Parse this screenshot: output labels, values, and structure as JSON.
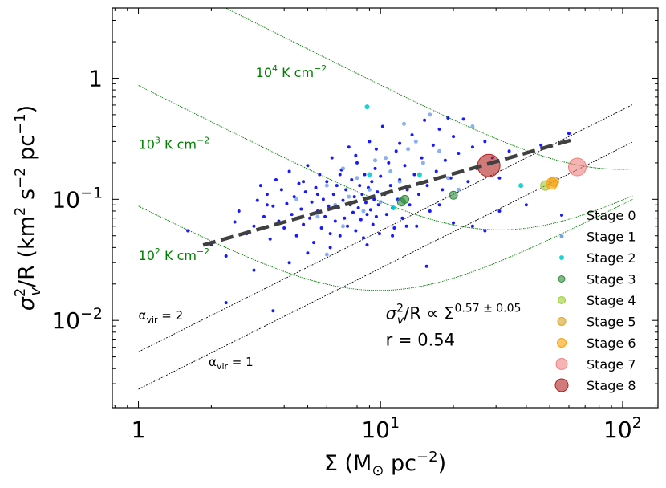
{
  "chart_data": {
    "type": "scatter",
    "xscale": "log",
    "yscale": "log",
    "xlim": [
      0.78,
      140
    ],
    "ylim": [
      0.0019,
      3.8
    ],
    "xlabel": {
      "main": "Σ (M",
      "sub": "⊙",
      "mid": " pc",
      "sup": "−2",
      "end": ")"
    },
    "ylabel": {
      "sig": "σ",
      "sub": "v",
      "sup": "2",
      "mid": "/R (km",
      "sup2": "2",
      "mid2": " s",
      "sup3": "−2",
      "mid3": " pc",
      "sup4": "−1",
      "end": ")"
    },
    "xticks": [
      {
        "value": 1,
        "base": "1",
        "exp": ""
      },
      {
        "value": 10,
        "base": "10",
        "exp": "1"
      },
      {
        "value": 100,
        "base": "10",
        "exp": "2"
      }
    ],
    "yticks": [
      {
        "value": 0.01,
        "base": "10",
        "exp": "−2"
      },
      {
        "value": 0.1,
        "base": "10",
        "exp": "−1"
      },
      {
        "value": 1,
        "base": "1",
        "exp": ""
      }
    ],
    "legend": {
      "position": "lower-right",
      "entries": [
        {
          "label": "Stage 0",
          "color": "#0000ff",
          "r": 2
        },
        {
          "label": "Stage 1",
          "color": "#6495ed",
          "r": 2.5
        },
        {
          "label": "Stage 2",
          "color": "#00ced1",
          "r": 3
        },
        {
          "label": "Stage 3",
          "color": "#2e8b3c",
          "r": 4
        },
        {
          "label": "Stage 4",
          "color": "#9acd32",
          "r": 4.5
        },
        {
          "label": "Stage 5",
          "color": "#daa520",
          "r": 5
        },
        {
          "label": "Stage 6",
          "color": "#ff9f00",
          "r": 5.5
        },
        {
          "label": "Stage 7",
          "color": "#f08080",
          "r": 7
        },
        {
          "label": "Stage 8",
          "color": "#b22222",
          "r": 8
        }
      ]
    },
    "virial_lines": [
      {
        "label": "α",
        "sub": "vir",
        "eq": " = 2",
        "y_at_1": 0.0055,
        "label_x": 1.0,
        "label_y": 0.0102
      },
      {
        "label": "α",
        "sub": "vir",
        "eq": " = 1",
        "y_at_1": 0.0027,
        "label_x": 1.95,
        "label_y": 0.0042
      }
    ],
    "pressure_curves": [
      {
        "label_base": "10",
        "label_exp": "2",
        "label_unit": " K cm",
        "label_unit_exp": "−2",
        "P": 100,
        "label_x": 1.0,
        "label_y": 0.0315
      },
      {
        "label_base": "10",
        "label_exp": "3",
        "label_unit": " K cm",
        "label_unit_exp": "−2",
        "P": 1000,
        "label_x": 1.0,
        "label_y": 0.26
      },
      {
        "label_base": "10",
        "label_exp": "4",
        "label_unit": " K cm",
        "label_unit_exp": "−2",
        "P": 10000,
        "label_x": 3.05,
        "label_y": 1.02
      }
    ],
    "fit": {
      "slope": 0.57,
      "amplitude": 0.0295,
      "x_range": [
        1.85,
        62
      ]
    },
    "annotation": {
      "rel_sig": "σ",
      "rel_sub": "v",
      "rel_sup": "2",
      "rel_mid": "/R ∝ Σ",
      "rel_exp": "0.57 ± 0.05",
      "r_text": "r = 0.54",
      "x": 10.5,
      "y_rel": 0.0103,
      "y_r": 0.0062
    },
    "series": [
      {
        "stage": 0,
        "points": [
          [
            1.6,
            0.055
          ],
          [
            2.0,
            0.042
          ],
          [
            2.3,
            0.034
          ],
          [
            2.5,
            0.065
          ],
          [
            2.6,
            0.08
          ],
          [
            2.8,
            0.052
          ],
          [
            3.0,
            0.06
          ],
          [
            3.1,
            0.098
          ],
          [
            3.2,
            0.13
          ],
          [
            3.3,
            0.072
          ],
          [
            3.4,
            0.11
          ],
          [
            3.5,
            0.047
          ],
          [
            3.6,
            0.088
          ],
          [
            3.7,
            0.145
          ],
          [
            3.8,
            0.066
          ],
          [
            3.9,
            0.12
          ],
          [
            4.0,
            0.058
          ],
          [
            4.1,
            0.092
          ],
          [
            4.2,
            0.17
          ],
          [
            4.3,
            0.075
          ],
          [
            4.4,
            0.105
          ],
          [
            4.5,
            0.05
          ],
          [
            4.6,
            0.135
          ],
          [
            4.7,
            0.083
          ],
          [
            4.8,
            0.062
          ],
          [
            4.9,
            0.115
          ],
          [
            5.0,
            0.19
          ],
          [
            5.1,
            0.07
          ],
          [
            5.2,
            0.095
          ],
          [
            5.3,
            0.044
          ],
          [
            5.4,
            0.125
          ],
          [
            5.5,
            0.08
          ],
          [
            5.6,
            0.16
          ],
          [
            5.7,
            0.058
          ],
          [
            5.8,
            0.1
          ],
          [
            5.9,
            0.072
          ],
          [
            6.0,
            0.14
          ],
          [
            6.1,
            0.088
          ],
          [
            6.2,
            0.052
          ],
          [
            6.3,
            0.22
          ],
          [
            6.4,
            0.11
          ],
          [
            6.5,
            0.066
          ],
          [
            6.6,
            0.13
          ],
          [
            6.7,
            0.085
          ],
          [
            6.8,
            0.05
          ],
          [
            6.9,
            0.175
          ],
          [
            7.0,
            0.098
          ],
          [
            7.1,
            0.07
          ],
          [
            7.2,
            0.12
          ],
          [
            7.3,
            0.06
          ],
          [
            7.4,
            0.27
          ],
          [
            7.5,
            0.09
          ],
          [
            7.6,
            0.145
          ],
          [
            7.7,
            0.078
          ],
          [
            7.8,
            0.105
          ],
          [
            7.9,
            0.055
          ],
          [
            8.0,
            0.2
          ],
          [
            8.1,
            0.085
          ],
          [
            8.2,
            0.13
          ],
          [
            8.3,
            0.068
          ],
          [
            8.4,
            0.11
          ],
          [
            8.5,
            0.048
          ],
          [
            8.6,
            0.16
          ],
          [
            8.7,
            0.094
          ],
          [
            8.8,
            0.075
          ],
          [
            8.9,
            0.125
          ],
          [
            9.0,
            0.3
          ],
          [
            9.1,
            0.082
          ],
          [
            9.2,
            0.14
          ],
          [
            9.3,
            0.062
          ],
          [
            9.4,
            0.1
          ],
          [
            9.5,
            0.18
          ],
          [
            9.6,
            0.072
          ],
          [
            9.7,
            0.115
          ],
          [
            9.8,
            0.09
          ],
          [
            9.9,
            0.052
          ],
          [
            10.0,
            0.155
          ],
          [
            10.2,
            0.4
          ],
          [
            10.4,
            0.11
          ],
          [
            10.6,
            0.075
          ],
          [
            10.8,
            0.2
          ],
          [
            11.0,
            0.13
          ],
          [
            11.2,
            0.085
          ],
          [
            11.4,
            0.058
          ],
          [
            11.6,
            0.25
          ],
          [
            11.8,
            0.1
          ],
          [
            12.0,
            0.145
          ],
          [
            12.3,
            0.07
          ],
          [
            12.6,
            0.19
          ],
          [
            12.9,
            0.12
          ],
          [
            13.2,
            0.09
          ],
          [
            13.5,
            0.34
          ],
          [
            13.8,
            0.16
          ],
          [
            14.1,
            0.06
          ],
          [
            14.4,
            0.11
          ],
          [
            14.8,
            0.22
          ],
          [
            15.2,
            0.45
          ],
          [
            15.6,
            0.13
          ],
          [
            16.0,
            0.08
          ],
          [
            16.5,
            0.28
          ],
          [
            17.0,
            0.17
          ],
          [
            17.5,
            0.38
          ],
          [
            18.0,
            0.12
          ],
          [
            18.5,
            0.21
          ],
          [
            19.0,
            0.47
          ],
          [
            19.5,
            0.15
          ],
          [
            20.0,
            0.33
          ],
          [
            21.0,
            0.24
          ],
          [
            22.0,
            0.46
          ],
          [
            23.0,
            0.14
          ],
          [
            24.0,
            0.27
          ],
          [
            25.0,
            0.18
          ],
          [
            27.0,
            0.3
          ],
          [
            29.0,
            0.22
          ],
          [
            31.0,
            0.15
          ],
          [
            34.0,
            0.25
          ],
          [
            40.0,
            0.09
          ],
          [
            46.0,
            0.28
          ],
          [
            60.0,
            0.35
          ],
          [
            3.0,
            0.026
          ],
          [
            3.6,
            0.012
          ],
          [
            2.3,
            0.014
          ],
          [
            4.2,
            0.03
          ],
          [
            5.0,
            0.036
          ],
          [
            6.2,
            0.04
          ],
          [
            15.5,
            0.028
          ],
          [
            20.0,
            0.064
          ],
          [
            24.0,
            0.06
          ],
          [
            27.0,
            0.055
          ],
          [
            31.0,
            0.08
          ],
          [
            12.8,
            0.06
          ],
          [
            17.5,
            0.09
          ],
          [
            8.8,
            0.042
          ],
          [
            11.2,
            0.05
          ],
          [
            5.5,
            0.11
          ],
          [
            6.8,
            0.16
          ],
          [
            4.8,
            0.14
          ],
          [
            3.4,
            0.09
          ],
          [
            7.9,
            0.23
          ],
          [
            9.6,
            0.26
          ],
          [
            12.0,
            0.29
          ]
        ]
      },
      {
        "stage": 1,
        "points": [
          [
            4.5,
            0.1
          ],
          [
            5.5,
            0.072
          ],
          [
            6.0,
            0.13
          ],
          [
            6.5,
            0.09
          ],
          [
            7.0,
            0.18
          ],
          [
            7.4,
            0.105
          ],
          [
            8.0,
            0.15
          ],
          [
            8.5,
            0.08
          ],
          [
            9.0,
            0.12
          ],
          [
            9.5,
            0.21
          ],
          [
            10.0,
            0.095
          ],
          [
            11.0,
            0.17
          ],
          [
            12.0,
            0.14
          ],
          [
            13.0,
            0.26
          ],
          [
            14.0,
            0.3
          ],
          [
            15.0,
            0.2
          ],
          [
            16.0,
            0.5
          ],
          [
            17.5,
            0.25
          ],
          [
            19.0,
            0.15
          ],
          [
            21.0,
            0.12
          ],
          [
            24.0,
            0.4
          ],
          [
            6.0,
            0.035
          ],
          [
            7.0,
            0.06
          ],
          [
            10.5,
            0.22
          ],
          [
            12.5,
            0.42
          ]
        ]
      },
      {
        "stage": 2,
        "points": [
          [
            8.8,
            0.58
          ],
          [
            9.0,
            0.16
          ],
          [
            11.3,
            0.085
          ],
          [
            14.5,
            0.16
          ],
          [
            38.0,
            0.13
          ]
        ]
      },
      {
        "stage": 3,
        "points": [
          [
            12.2,
            0.095
          ],
          [
            20.0,
            0.108
          ],
          [
            12.6,
            0.1
          ]
        ]
      },
      {
        "stage": 4,
        "points": [
          [
            48.0,
            0.13
          ]
        ]
      },
      {
        "stage": 5,
        "points": [
          [
            52.0,
            0.14
          ]
        ]
      },
      {
        "stage": 6,
        "points": [
          [
            51.0,
            0.135
          ]
        ]
      },
      {
        "stage": 7,
        "points": [
          [
            65.0,
            0.185
          ]
        ]
      },
      {
        "stage": 8,
        "points": [
          [
            28.0,
            0.19
          ]
        ]
      }
    ],
    "series_sizes": [
      2,
      2.5,
      3,
      5,
      6,
      6,
      7,
      11,
      14
    ]
  }
}
